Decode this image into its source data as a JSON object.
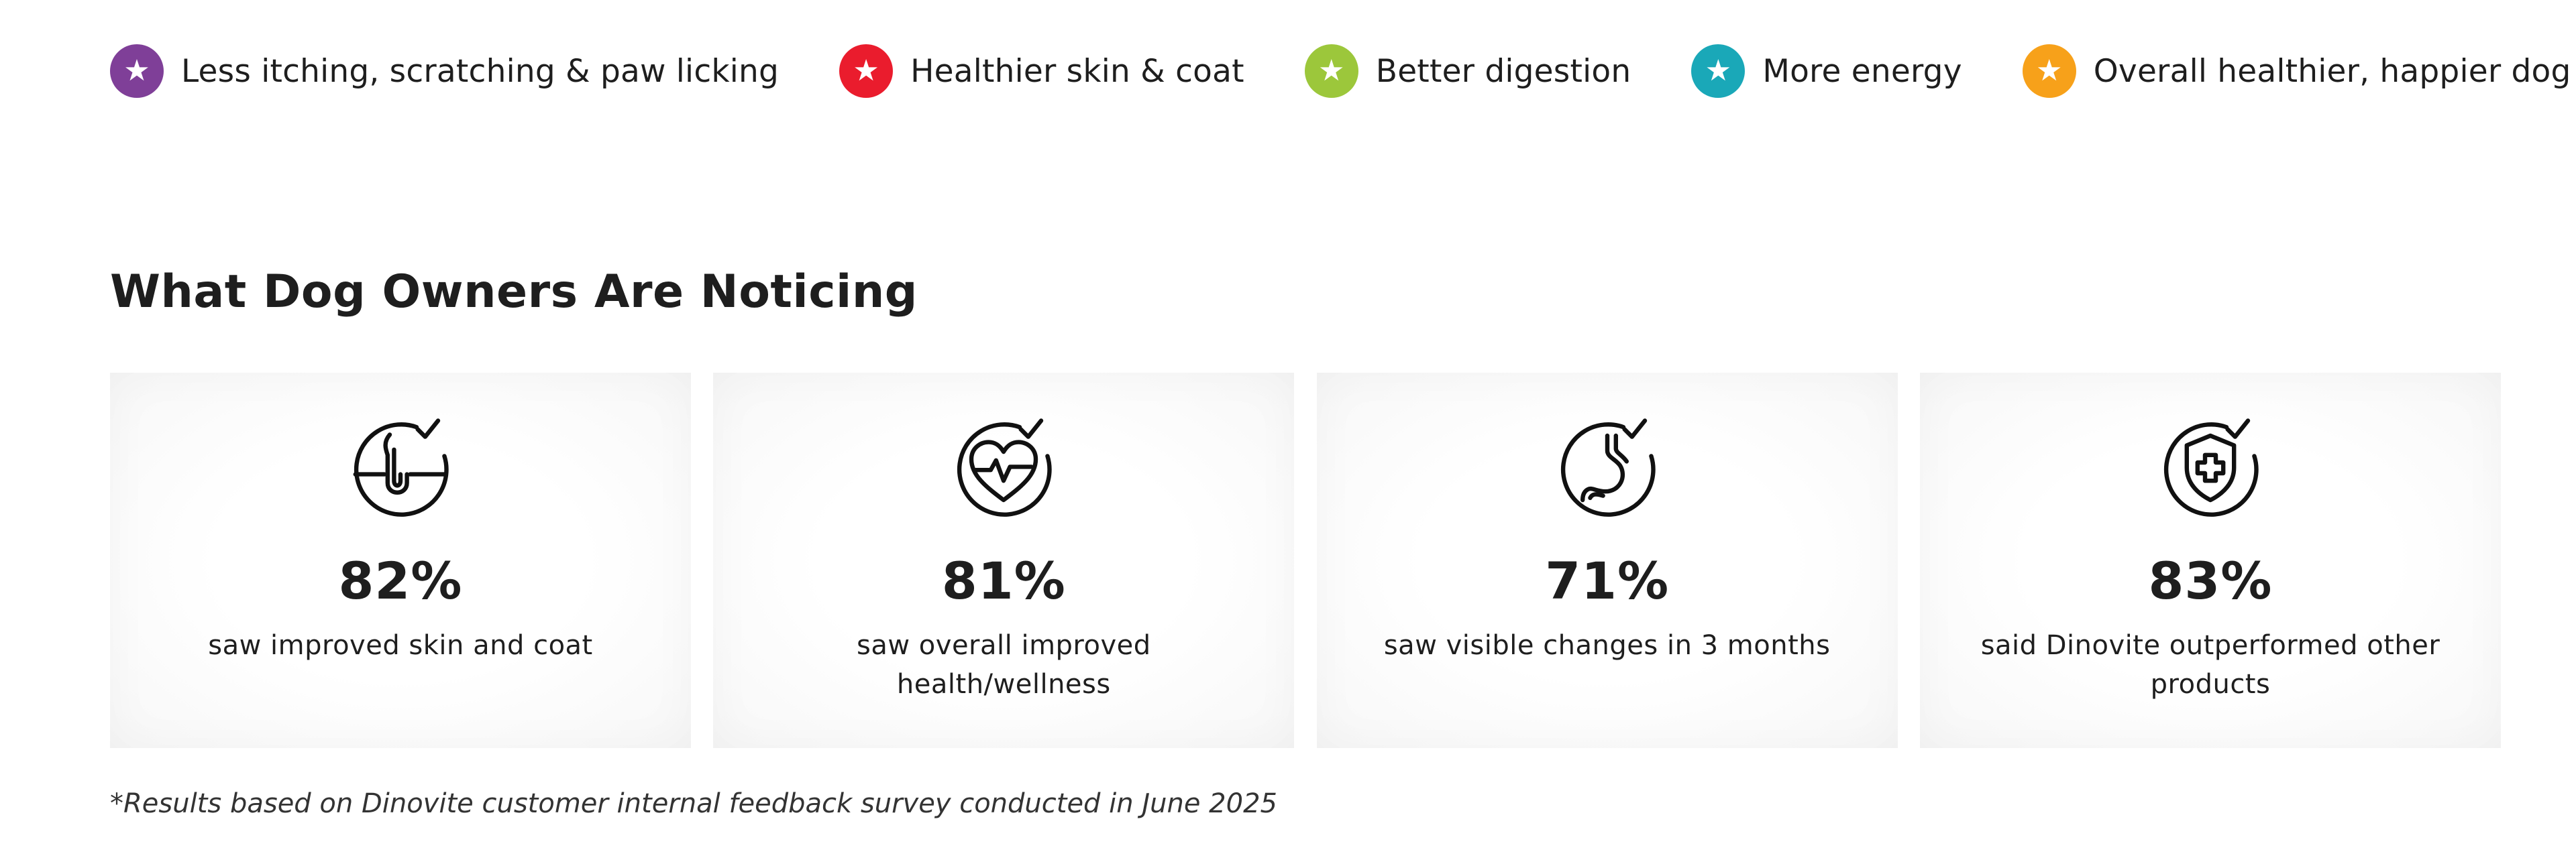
{
  "benefits": [
    {
      "label": "Less itching, scratching & paw licking",
      "color": "#7f3f98",
      "icon": "star-icon"
    },
    {
      "label": "Healthier skin & coat",
      "color": "#ea1c2d",
      "icon": "star-icon"
    },
    {
      "label": "Better digestion",
      "color": "#9cc73b",
      "icon": "star-icon"
    },
    {
      "label": "More energy",
      "color": "#1aa8b8",
      "icon": "star-icon"
    },
    {
      "label": "Overall healthier, happier dog",
      "color": "#f7a11a",
      "icon": "star-icon"
    }
  ],
  "section": {
    "title": "What Dog Owners Are Noticing"
  },
  "stats": [
    {
      "value": "82%",
      "description": "saw improved skin and coat",
      "icon": "hair-follicle-check-icon"
    },
    {
      "value": "81%",
      "description": "saw overall improved health/wellness",
      "icon": "heart-pulse-check-icon"
    },
    {
      "value": "71%",
      "description": "saw visible changes in 3 months",
      "icon": "stomach-check-icon"
    },
    {
      "value": "83%",
      "description": "said Dinovite outperformed other products",
      "icon": "shield-cross-check-icon"
    }
  ],
  "footnote": "*Results based on Dinovite customer internal feedback survey conducted in June 2025"
}
